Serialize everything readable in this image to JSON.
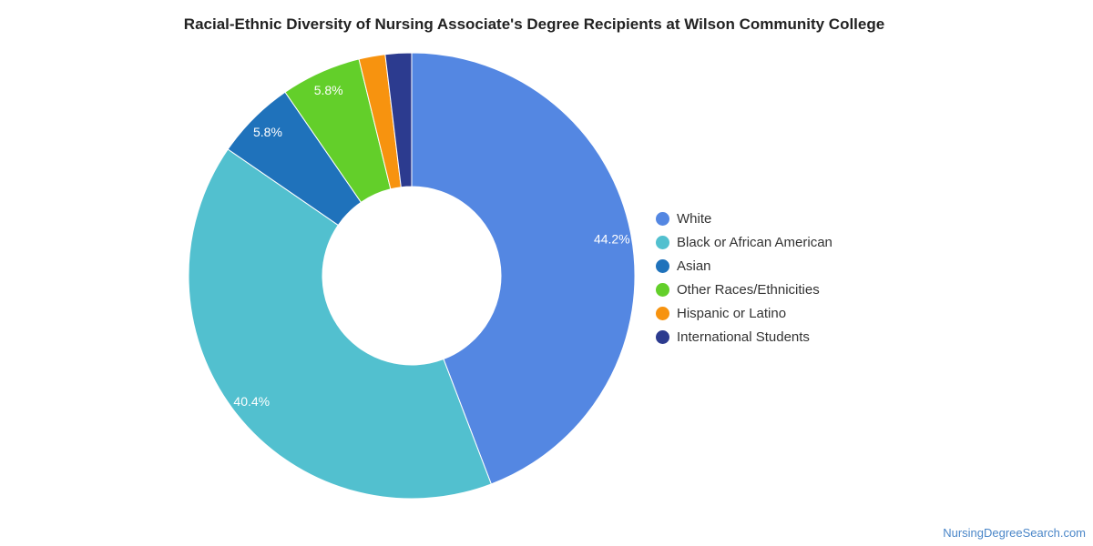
{
  "chart_data": {
    "type": "pie",
    "variant": "donut",
    "title": "Racial-Ethnic Diversity of Nursing Associate's Degree Recipients at Wilson Community College",
    "unit": "%",
    "legend_position": "right",
    "series": [
      {
        "name": "White",
        "value": 44.2,
        "label": "44.2%",
        "color": "#5487e2"
      },
      {
        "name": "Black or African American",
        "value": 40.4,
        "label": "40.4%",
        "color": "#52c0cf"
      },
      {
        "name": "Asian",
        "value": 5.8,
        "label": "5.8%",
        "color": "#1f72bb"
      },
      {
        "name": "Other Races/Ethnicities",
        "value": 5.8,
        "label": "5.8%",
        "color": "#63cf2a"
      },
      {
        "name": "Hispanic or Latino",
        "value": 1.9,
        "label": "",
        "color": "#f7930f"
      },
      {
        "name": "International Students",
        "value": 1.9,
        "label": "",
        "color": "#2c3b8f"
      }
    ]
  },
  "credit": "NursingDegreeSearch.com"
}
